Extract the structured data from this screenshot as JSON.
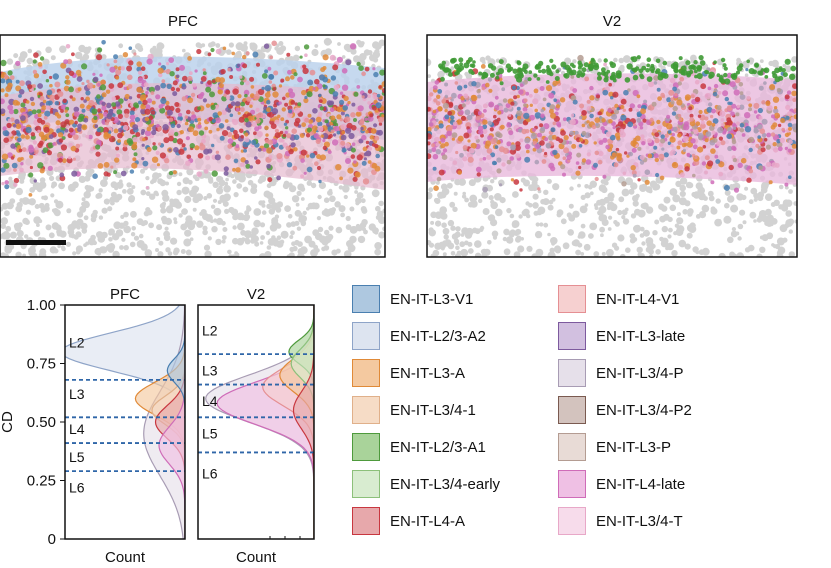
{
  "panels_top": [
    {
      "title": "PFC",
      "has_scale_bar": true
    },
    {
      "title": "V2",
      "has_scale_bar": false
    }
  ],
  "chart_data": {
    "type": "area",
    "ylabel": "CD",
    "xlabel": "Count",
    "ylim": [
      0,
      1
    ],
    "yticks": [
      "1.00",
      "0.75",
      "0.50",
      "0.25",
      "0"
    ],
    "panels": [
      {
        "title": "PFC",
        "layers": [
          {
            "label": "L2",
            "y": 0.84
          },
          {
            "label": "L3",
            "y": 0.62
          },
          {
            "label": "L4",
            "y": 0.47
          },
          {
            "label": "L5",
            "y": 0.35
          },
          {
            "label": "L6",
            "y": 0.22
          }
        ],
        "boundaries": [
          0.68,
          0.52,
          0.41,
          0.29
        ]
      },
      {
        "title": "V2",
        "layers": [
          {
            "label": "L2",
            "y": 0.89
          },
          {
            "label": "L3",
            "y": 0.72
          },
          {
            "label": "L4",
            "y": 0.59
          },
          {
            "label": "L5",
            "y": 0.45
          },
          {
            "label": "L6",
            "y": 0.28
          }
        ],
        "boundaries": [
          0.79,
          0.66,
          0.52,
          0.37
        ]
      }
    ]
  },
  "legend": [
    {
      "label": "EN-IT-L3-V1",
      "color": "#aec8e0",
      "border": "#4a7fb0"
    },
    {
      "label": "EN-IT-L2/3-A2",
      "color": "#dde4f0",
      "border": "#8ea4c8"
    },
    {
      "label": "EN-IT-L3-A",
      "color": "#f4c9a0",
      "border": "#e08a38"
    },
    {
      "label": "EN-IT-L3/4-1",
      "color": "#f6dcc6",
      "border": "#e0b08a"
    },
    {
      "label": "EN-IT-L2/3-A1",
      "color": "#a9d39a",
      "border": "#4e9a3c"
    },
    {
      "label": "EN-IT-L3/4-early",
      "color": "#d8ecd0",
      "border": "#8cc07a"
    },
    {
      "label": "EN-IT-L4-A",
      "color": "#e7a8ab",
      "border": "#c8373f"
    },
    {
      "label": "EN-IT-L4-V1",
      "color": "#f6d0d0",
      "border": "#e58f93"
    },
    {
      "label": "EN-IT-L3-late",
      "color": "#d2c0e0",
      "border": "#7d5a9e"
    },
    {
      "label": "EN-IT-L3/4-P",
      "color": "#e6e0ea",
      "border": "#a89cb4"
    },
    {
      "label": "EN-IT-L3/4-P2",
      "color": "#d3c3be",
      "border": "#7a5a50"
    },
    {
      "label": "EN-IT-L3-P",
      "color": "#e8dbd6",
      "border": "#b49c92"
    },
    {
      "label": "EN-IT-L4-late",
      "color": "#efc0e4",
      "border": "#cf6cb8"
    },
    {
      "label": "EN-IT-L3/4-T",
      "color": "#f7dceb",
      "border": "#e8a8c8"
    }
  ]
}
